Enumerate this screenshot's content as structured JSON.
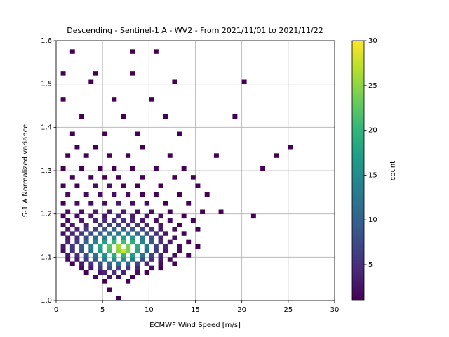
{
  "chart_data": {
    "type": "hist2d",
    "title": "Descending - Sentinel-1 A - WV2 - From 2021/11/01 to 2021/11/22",
    "x_label": "ECMWF Wind Speed [m/s]",
    "y_label": "S-1 A Normalized variance",
    "xlim": [
      0,
      30
    ],
    "xticks": [
      0,
      5,
      10,
      15,
      20,
      25,
      30
    ],
    "ylim": [
      1,
      1.6
    ],
    "yticks": [
      {
        "value": 1,
        "label": "1.0"
      },
      1.1,
      1.2,
      1.3,
      1.4,
      1.5,
      1.6
    ],
    "grid": true,
    "colormap": "viridis",
    "colorbar": {
      "label": "count",
      "lim": [
        1,
        30
      ],
      "ticks": [
        5,
        10,
        15,
        20,
        25,
        30
      ]
    },
    "cells": [
      {
        "x": 6.75,
        "y": 1.005,
        "count": 1
      },
      {
        "x": 5.75,
        "y": 1.025,
        "count": 1
      },
      {
        "x": 5.25,
        "y": 1.045,
        "count": 1
      },
      {
        "x": 7.75,
        "y": 1.045,
        "count": 1
      },
      {
        "x": 4.25,
        "y": 1.055,
        "count": 2
      },
      {
        "x": 5.75,
        "y": 1.055,
        "count": 3
      },
      {
        "x": 6.75,
        "y": 1.055,
        "count": 2
      },
      {
        "x": 8.25,
        "y": 1.055,
        "count": 1
      },
      {
        "x": 3.25,
        "y": 1.065,
        "count": 1
      },
      {
        "x": 4.75,
        "y": 1.065,
        "count": 3
      },
      {
        "x": 5.25,
        "y": 1.065,
        "count": 4
      },
      {
        "x": 6.25,
        "y": 1.065,
        "count": 5
      },
      {
        "x": 7.25,
        "y": 1.065,
        "count": 4
      },
      {
        "x": 8.75,
        "y": 1.065,
        "count": 2
      },
      {
        "x": 9.75,
        "y": 1.065,
        "count": 1
      },
      {
        "x": 2.75,
        "y": 1.075,
        "count": 2
      },
      {
        "x": 3.75,
        "y": 1.075,
        "count": 3
      },
      {
        "x": 4.75,
        "y": 1.075,
        "count": 6
      },
      {
        "x": 5.75,
        "y": 1.075,
        "count": 8
      },
      {
        "x": 6.75,
        "y": 1.075,
        "count": 7
      },
      {
        "x": 7.75,
        "y": 1.075,
        "count": 6
      },
      {
        "x": 8.75,
        "y": 1.075,
        "count": 4
      },
      {
        "x": 10.25,
        "y": 1.075,
        "count": 2
      },
      {
        "x": 11.25,
        "y": 1.075,
        "count": 1
      },
      {
        "x": 1.75,
        "y": 1.085,
        "count": 1
      },
      {
        "x": 2.75,
        "y": 1.085,
        "count": 3
      },
      {
        "x": 3.75,
        "y": 1.085,
        "count": 5
      },
      {
        "x": 4.75,
        "y": 1.085,
        "count": 8
      },
      {
        "x": 5.75,
        "y": 1.085,
        "count": 11
      },
      {
        "x": 6.75,
        "y": 1.085,
        "count": 12
      },
      {
        "x": 7.75,
        "y": 1.085,
        "count": 10
      },
      {
        "x": 8.75,
        "y": 1.085,
        "count": 7
      },
      {
        "x": 9.75,
        "y": 1.085,
        "count": 4
      },
      {
        "x": 11.25,
        "y": 1.085,
        "count": 2
      },
      {
        "x": 12.75,
        "y": 1.085,
        "count": 1
      },
      {
        "x": 1.25,
        "y": 1.095,
        "count": 2
      },
      {
        "x": 2.25,
        "y": 1.095,
        "count": 3
      },
      {
        "x": 3.25,
        "y": 1.095,
        "count": 6
      },
      {
        "x": 4.25,
        "y": 1.095,
        "count": 9
      },
      {
        "x": 5.25,
        "y": 1.095,
        "count": 13
      },
      {
        "x": 6.25,
        "y": 1.095,
        "count": 15
      },
      {
        "x": 7.25,
        "y": 1.095,
        "count": 16
      },
      {
        "x": 8.25,
        "y": 1.095,
        "count": 13
      },
      {
        "x": 9.25,
        "y": 1.095,
        "count": 8
      },
      {
        "x": 10.25,
        "y": 1.095,
        "count": 5
      },
      {
        "x": 11.25,
        "y": 1.095,
        "count": 3
      },
      {
        "x": 12.25,
        "y": 1.095,
        "count": 2
      },
      {
        "x": 1.25,
        "y": 1.105,
        "count": 3
      },
      {
        "x": 2.25,
        "y": 1.105,
        "count": 5
      },
      {
        "x": 3.25,
        "y": 1.105,
        "count": 8
      },
      {
        "x": 4.25,
        "y": 1.105,
        "count": 12
      },
      {
        "x": 5.25,
        "y": 1.105,
        "count": 16
      },
      {
        "x": 6.25,
        "y": 1.105,
        "count": 19
      },
      {
        "x": 7.25,
        "y": 1.105,
        "count": 20
      },
      {
        "x": 8.25,
        "y": 1.105,
        "count": 17
      },
      {
        "x": 9.25,
        "y": 1.105,
        "count": 12
      },
      {
        "x": 10.25,
        "y": 1.105,
        "count": 7
      },
      {
        "x": 11.25,
        "y": 1.105,
        "count": 4
      },
      {
        "x": 12.75,
        "y": 1.105,
        "count": 2
      },
      {
        "x": 14.25,
        "y": 1.105,
        "count": 1
      },
      {
        "x": 0.75,
        "y": 1.115,
        "count": 2
      },
      {
        "x": 1.75,
        "y": 1.115,
        "count": 5
      },
      {
        "x": 2.75,
        "y": 1.115,
        "count": 8
      },
      {
        "x": 3.75,
        "y": 1.115,
        "count": 12
      },
      {
        "x": 4.75,
        "y": 1.115,
        "count": 17
      },
      {
        "x": 5.75,
        "y": 1.115,
        "count": 21
      },
      {
        "x": 6.75,
        "y": 1.115,
        "count": 25
      },
      {
        "x": 7.25,
        "y": 1.115,
        "count": 28
      },
      {
        "x": 7.75,
        "y": 1.115,
        "count": 24
      },
      {
        "x": 8.75,
        "y": 1.115,
        "count": 18
      },
      {
        "x": 9.75,
        "y": 1.115,
        "count": 11
      },
      {
        "x": 10.75,
        "y": 1.115,
        "count": 6
      },
      {
        "x": 11.75,
        "y": 1.115,
        "count": 3
      },
      {
        "x": 13.25,
        "y": 1.115,
        "count": 2
      },
      {
        "x": 0.75,
        "y": 1.125,
        "count": 3
      },
      {
        "x": 1.75,
        "y": 1.125,
        "count": 6
      },
      {
        "x": 2.75,
        "y": 1.125,
        "count": 9
      },
      {
        "x": 3.75,
        "y": 1.125,
        "count": 13
      },
      {
        "x": 4.75,
        "y": 1.125,
        "count": 18
      },
      {
        "x": 5.75,
        "y": 1.125,
        "count": 22
      },
      {
        "x": 6.75,
        "y": 1.125,
        "count": 26
      },
      {
        "x": 7.75,
        "y": 1.125,
        "count": 24
      },
      {
        "x": 8.75,
        "y": 1.125,
        "count": 19
      },
      {
        "x": 9.75,
        "y": 1.125,
        "count": 13
      },
      {
        "x": 10.75,
        "y": 1.125,
        "count": 7
      },
      {
        "x": 11.75,
        "y": 1.125,
        "count": 4
      },
      {
        "x": 13.25,
        "y": 1.125,
        "count": 2
      },
      {
        "x": 15.25,
        "y": 1.125,
        "count": 1
      },
      {
        "x": 1.25,
        "y": 1.135,
        "count": 4
      },
      {
        "x": 2.25,
        "y": 1.135,
        "count": 6
      },
      {
        "x": 3.25,
        "y": 1.135,
        "count": 10
      },
      {
        "x": 4.25,
        "y": 1.135,
        "count": 14
      },
      {
        "x": 5.25,
        "y": 1.135,
        "count": 17
      },
      {
        "x": 6.25,
        "y": 1.135,
        "count": 20
      },
      {
        "x": 7.25,
        "y": 1.135,
        "count": 21
      },
      {
        "x": 8.25,
        "y": 1.135,
        "count": 19
      },
      {
        "x": 9.25,
        "y": 1.135,
        "count": 14
      },
      {
        "x": 10.25,
        "y": 1.135,
        "count": 9
      },
      {
        "x": 11.25,
        "y": 1.135,
        "count": 5
      },
      {
        "x": 12.25,
        "y": 1.135,
        "count": 3
      },
      {
        "x": 14.25,
        "y": 1.135,
        "count": 1
      },
      {
        "x": 1.25,
        "y": 1.145,
        "count": 3
      },
      {
        "x": 2.25,
        "y": 1.145,
        "count": 5
      },
      {
        "x": 3.25,
        "y": 1.145,
        "count": 8
      },
      {
        "x": 4.25,
        "y": 1.145,
        "count": 11
      },
      {
        "x": 5.25,
        "y": 1.145,
        "count": 13
      },
      {
        "x": 6.25,
        "y": 1.145,
        "count": 15
      },
      {
        "x": 7.25,
        "y": 1.145,
        "count": 17
      },
      {
        "x": 8.25,
        "y": 1.145,
        "count": 16
      },
      {
        "x": 9.25,
        "y": 1.145,
        "count": 13
      },
      {
        "x": 10.25,
        "y": 1.145,
        "count": 8
      },
      {
        "x": 11.25,
        "y": 1.145,
        "count": 4
      },
      {
        "x": 12.75,
        "y": 1.145,
        "count": 2
      },
      {
        "x": 0.75,
        "y": 1.155,
        "count": 2
      },
      {
        "x": 1.75,
        "y": 1.155,
        "count": 4
      },
      {
        "x": 2.75,
        "y": 1.155,
        "count": 6
      },
      {
        "x": 3.75,
        "y": 1.155,
        "count": 8
      },
      {
        "x": 4.75,
        "y": 1.155,
        "count": 10
      },
      {
        "x": 5.75,
        "y": 1.155,
        "count": 12
      },
      {
        "x": 6.75,
        "y": 1.155,
        "count": 13
      },
      {
        "x": 7.75,
        "y": 1.155,
        "count": 13
      },
      {
        "x": 8.75,
        "y": 1.155,
        "count": 11
      },
      {
        "x": 9.75,
        "y": 1.155,
        "count": 8
      },
      {
        "x": 10.75,
        "y": 1.155,
        "count": 5
      },
      {
        "x": 11.75,
        "y": 1.155,
        "count": 3
      },
      {
        "x": 13.75,
        "y": 1.155,
        "count": 1
      },
      {
        "x": 1.25,
        "y": 1.165,
        "count": 3
      },
      {
        "x": 2.25,
        "y": 1.165,
        "count": 4
      },
      {
        "x": 3.25,
        "y": 1.165,
        "count": 6
      },
      {
        "x": 4.25,
        "y": 1.165,
        "count": 7
      },
      {
        "x": 5.25,
        "y": 1.165,
        "count": 9
      },
      {
        "x": 6.25,
        "y": 1.165,
        "count": 10
      },
      {
        "x": 7.25,
        "y": 1.165,
        "count": 10
      },
      {
        "x": 8.25,
        "y": 1.165,
        "count": 9
      },
      {
        "x": 9.25,
        "y": 1.165,
        "count": 7
      },
      {
        "x": 10.25,
        "y": 1.165,
        "count": 5
      },
      {
        "x": 11.25,
        "y": 1.165,
        "count": 3
      },
      {
        "x": 12.75,
        "y": 1.165,
        "count": 2
      },
      {
        "x": 15.25,
        "y": 1.165,
        "count": 1
      },
      {
        "x": 0.75,
        "y": 1.175,
        "count": 2
      },
      {
        "x": 1.75,
        "y": 1.175,
        "count": 3
      },
      {
        "x": 3.25,
        "y": 1.175,
        "count": 4
      },
      {
        "x": 4.75,
        "y": 1.175,
        "count": 6
      },
      {
        "x": 5.75,
        "y": 1.175,
        "count": 7
      },
      {
        "x": 6.75,
        "y": 1.175,
        "count": 7
      },
      {
        "x": 7.75,
        "y": 1.175,
        "count": 6
      },
      {
        "x": 8.75,
        "y": 1.175,
        "count": 6
      },
      {
        "x": 9.75,
        "y": 1.175,
        "count": 4
      },
      {
        "x": 11.25,
        "y": 1.175,
        "count": 3
      },
      {
        "x": 13.25,
        "y": 1.175,
        "count": 1
      },
      {
        "x": 1.25,
        "y": 1.185,
        "count": 2
      },
      {
        "x": 2.75,
        "y": 1.185,
        "count": 3
      },
      {
        "x": 4.25,
        "y": 1.185,
        "count": 4
      },
      {
        "x": 5.25,
        "y": 1.185,
        "count": 5
      },
      {
        "x": 6.25,
        "y": 1.185,
        "count": 5
      },
      {
        "x": 7.25,
        "y": 1.185,
        "count": 5
      },
      {
        "x": 8.25,
        "y": 1.185,
        "count": 4
      },
      {
        "x": 9.25,
        "y": 1.185,
        "count": 3
      },
      {
        "x": 10.75,
        "y": 1.185,
        "count": 2
      },
      {
        "x": 12.25,
        "y": 1.185,
        "count": 2
      },
      {
        "x": 14.75,
        "y": 1.185,
        "count": 1
      },
      {
        "x": 0.75,
        "y": 1.195,
        "count": 1
      },
      {
        "x": 2.25,
        "y": 1.195,
        "count": 2
      },
      {
        "x": 3.75,
        "y": 1.195,
        "count": 3
      },
      {
        "x": 5.25,
        "y": 1.195,
        "count": 3
      },
      {
        "x": 6.75,
        "y": 1.195,
        "count": 4
      },
      {
        "x": 8.25,
        "y": 1.195,
        "count": 3
      },
      {
        "x": 9.75,
        "y": 1.195,
        "count": 3
      },
      {
        "x": 11.25,
        "y": 1.195,
        "count": 2
      },
      {
        "x": 13.75,
        "y": 1.195,
        "count": 1
      },
      {
        "x": 21.25,
        "y": 1.195,
        "count": 1
      },
      {
        "x": 1.25,
        "y": 1.205,
        "count": 2
      },
      {
        "x": 2.75,
        "y": 1.205,
        "count": 2
      },
      {
        "x": 4.25,
        "y": 1.205,
        "count": 3
      },
      {
        "x": 5.75,
        "y": 1.205,
        "count": 3
      },
      {
        "x": 7.25,
        "y": 1.205,
        "count": 3
      },
      {
        "x": 8.75,
        "y": 1.205,
        "count": 2
      },
      {
        "x": 10.25,
        "y": 1.205,
        "count": 2
      },
      {
        "x": 12.25,
        "y": 1.205,
        "count": 1
      },
      {
        "x": 15.75,
        "y": 1.205,
        "count": 1
      },
      {
        "x": 17.75,
        "y": 1.205,
        "count": 1
      },
      {
        "x": 0.75,
        "y": 1.225,
        "count": 1
      },
      {
        "x": 2.25,
        "y": 1.225,
        "count": 2
      },
      {
        "x": 3.75,
        "y": 1.225,
        "count": 2
      },
      {
        "x": 5.25,
        "y": 1.225,
        "count": 2
      },
      {
        "x": 6.75,
        "y": 1.225,
        "count": 3
      },
      {
        "x": 8.25,
        "y": 1.225,
        "count": 2
      },
      {
        "x": 9.75,
        "y": 1.225,
        "count": 2
      },
      {
        "x": 11.75,
        "y": 1.225,
        "count": 1
      },
      {
        "x": 14.25,
        "y": 1.225,
        "count": 1
      },
      {
        "x": 1.25,
        "y": 1.245,
        "count": 2
      },
      {
        "x": 3.25,
        "y": 1.245,
        "count": 2
      },
      {
        "x": 4.75,
        "y": 1.245,
        "count": 2
      },
      {
        "x": 6.25,
        "y": 1.245,
        "count": 2
      },
      {
        "x": 7.75,
        "y": 1.245,
        "count": 2
      },
      {
        "x": 9.25,
        "y": 1.245,
        "count": 1
      },
      {
        "x": 10.75,
        "y": 1.245,
        "count": 1
      },
      {
        "x": 13.25,
        "y": 1.245,
        "count": 1
      },
      {
        "x": 16.25,
        "y": 1.245,
        "count": 1
      },
      {
        "x": 0.75,
        "y": 1.265,
        "count": 1
      },
      {
        "x": 2.25,
        "y": 1.265,
        "count": 1
      },
      {
        "x": 4.25,
        "y": 1.265,
        "count": 2
      },
      {
        "x": 5.75,
        "y": 1.265,
        "count": 2
      },
      {
        "x": 7.25,
        "y": 1.265,
        "count": 1
      },
      {
        "x": 8.75,
        "y": 1.265,
        "count": 1
      },
      {
        "x": 11.25,
        "y": 1.265,
        "count": 1
      },
      {
        "x": 15.25,
        "y": 1.265,
        "count": 1
      },
      {
        "x": 1.75,
        "y": 1.285,
        "count": 1
      },
      {
        "x": 3.75,
        "y": 1.285,
        "count": 1
      },
      {
        "x": 5.25,
        "y": 1.285,
        "count": 1
      },
      {
        "x": 6.75,
        "y": 1.285,
        "count": 1
      },
      {
        "x": 9.25,
        "y": 1.285,
        "count": 1
      },
      {
        "x": 12.75,
        "y": 1.285,
        "count": 1
      },
      {
        "x": 14.75,
        "y": 1.285,
        "count": 1
      },
      {
        "x": 0.75,
        "y": 1.305,
        "count": 1
      },
      {
        "x": 2.75,
        "y": 1.305,
        "count": 1
      },
      {
        "x": 4.75,
        "y": 1.305,
        "count": 1
      },
      {
        "x": 6.25,
        "y": 1.305,
        "count": 1
      },
      {
        "x": 8.25,
        "y": 1.305,
        "count": 1
      },
      {
        "x": 10.75,
        "y": 1.305,
        "count": 1
      },
      {
        "x": 13.75,
        "y": 1.305,
        "count": 1
      },
      {
        "x": 22.25,
        "y": 1.305,
        "count": 1
      },
      {
        "x": 1.25,
        "y": 1.335,
        "count": 1
      },
      {
        "x": 3.25,
        "y": 1.335,
        "count": 1
      },
      {
        "x": 5.75,
        "y": 1.335,
        "count": 1
      },
      {
        "x": 7.75,
        "y": 1.335,
        "count": 1
      },
      {
        "x": 12.25,
        "y": 1.335,
        "count": 1
      },
      {
        "x": 17.25,
        "y": 1.335,
        "count": 1
      },
      {
        "x": 23.75,
        "y": 1.335,
        "count": 1
      },
      {
        "x": 2.25,
        "y": 1.355,
        "count": 1
      },
      {
        "x": 4.25,
        "y": 1.355,
        "count": 1
      },
      {
        "x": 9.25,
        "y": 1.355,
        "count": 1
      },
      {
        "x": 25.25,
        "y": 1.355,
        "count": 1
      },
      {
        "x": 1.75,
        "y": 1.385,
        "count": 1
      },
      {
        "x": 5.25,
        "y": 1.385,
        "count": 1
      },
      {
        "x": 8.75,
        "y": 1.385,
        "count": 1
      },
      {
        "x": 13.25,
        "y": 1.385,
        "count": 1
      },
      {
        "x": 2.75,
        "y": 1.425,
        "count": 1
      },
      {
        "x": 7.25,
        "y": 1.425,
        "count": 1
      },
      {
        "x": 11.75,
        "y": 1.425,
        "count": 1
      },
      {
        "x": 19.25,
        "y": 1.425,
        "count": 1
      },
      {
        "x": 0.75,
        "y": 1.465,
        "count": 1
      },
      {
        "x": 6.25,
        "y": 1.465,
        "count": 1
      },
      {
        "x": 10.25,
        "y": 1.465,
        "count": 1
      },
      {
        "x": 3.75,
        "y": 1.505,
        "count": 1
      },
      {
        "x": 12.75,
        "y": 1.505,
        "count": 1
      },
      {
        "x": 20.25,
        "y": 1.505,
        "count": 1
      },
      {
        "x": 0.75,
        "y": 1.525,
        "count": 1
      },
      {
        "x": 4.25,
        "y": 1.525,
        "count": 1
      },
      {
        "x": 8.25,
        "y": 1.525,
        "count": 1
      },
      {
        "x": 1.75,
        "y": 1.575,
        "count": 1
      },
      {
        "x": 8.25,
        "y": 1.575,
        "count": 1
      },
      {
        "x": 10.75,
        "y": 1.575,
        "count": 1
      }
    ]
  }
}
